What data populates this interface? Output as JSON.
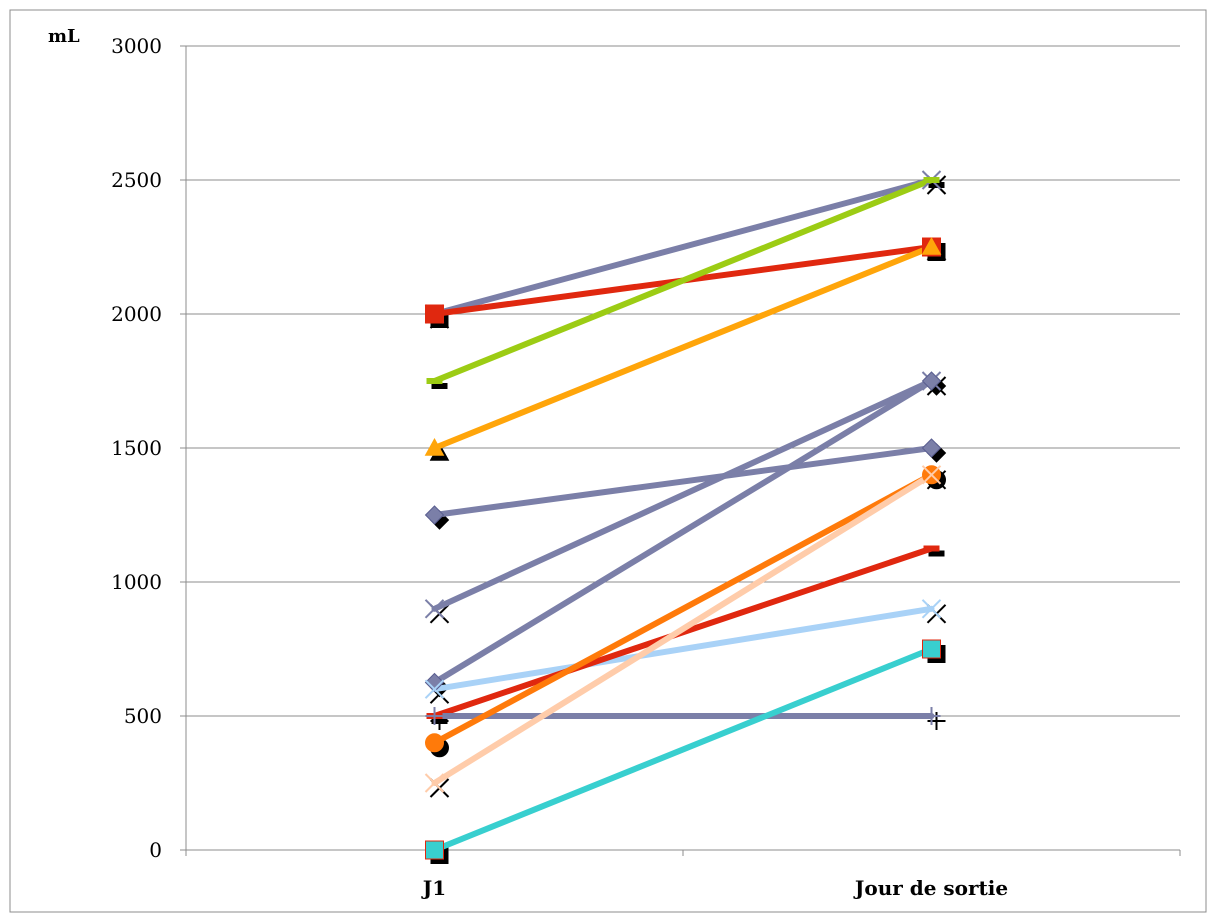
{
  "chart_data": {
    "type": "line",
    "ylabel": "mL",
    "categories": [
      "J1",
      "Jour de sortie"
    ],
    "ylim": [
      0,
      3000
    ],
    "yticks": [
      0,
      500,
      1000,
      1500,
      2000,
      2500,
      3000
    ],
    "grid": true,
    "series": [
      {
        "values": [
          2000,
          2500
        ],
        "color": "#7b7fa8",
        "marker": "x"
      },
      {
        "values": [
          2000,
          2250
        ],
        "color": "#e0280f",
        "marker": "square"
      },
      {
        "values": [
          1750,
          2500
        ],
        "color": "#9ccc14",
        "marker": "dash"
      },
      {
        "values": [
          1500,
          2250
        ],
        "color": "#ffa50a",
        "marker": "triangle"
      },
      {
        "values": [
          1250,
          1500
        ],
        "color": "#7b7fa8",
        "marker": "diamond"
      },
      {
        "values": [
          900,
          1750
        ],
        "color": "#7b7fa8",
        "marker": "x"
      },
      {
        "values": [
          625,
          1750
        ],
        "color": "#7b7fa8",
        "marker": "diamond"
      },
      {
        "values": [
          600,
          900
        ],
        "color": "#a9d2f7",
        "marker": "x"
      },
      {
        "values": [
          500,
          1125
        ],
        "color": "#e0280f",
        "marker": "dash"
      },
      {
        "values": [
          500,
          500
        ],
        "color": "#7b7fa8",
        "marker": "plus"
      },
      {
        "values": [
          400,
          1400
        ],
        "color": "#ff7a0a",
        "marker": "circle"
      },
      {
        "values": [
          250,
          1400
        ],
        "color": "#ffccaa",
        "marker": "x"
      },
      {
        "values": [
          0,
          750
        ],
        "color": "#38cfcf",
        "marker": "square"
      }
    ]
  }
}
